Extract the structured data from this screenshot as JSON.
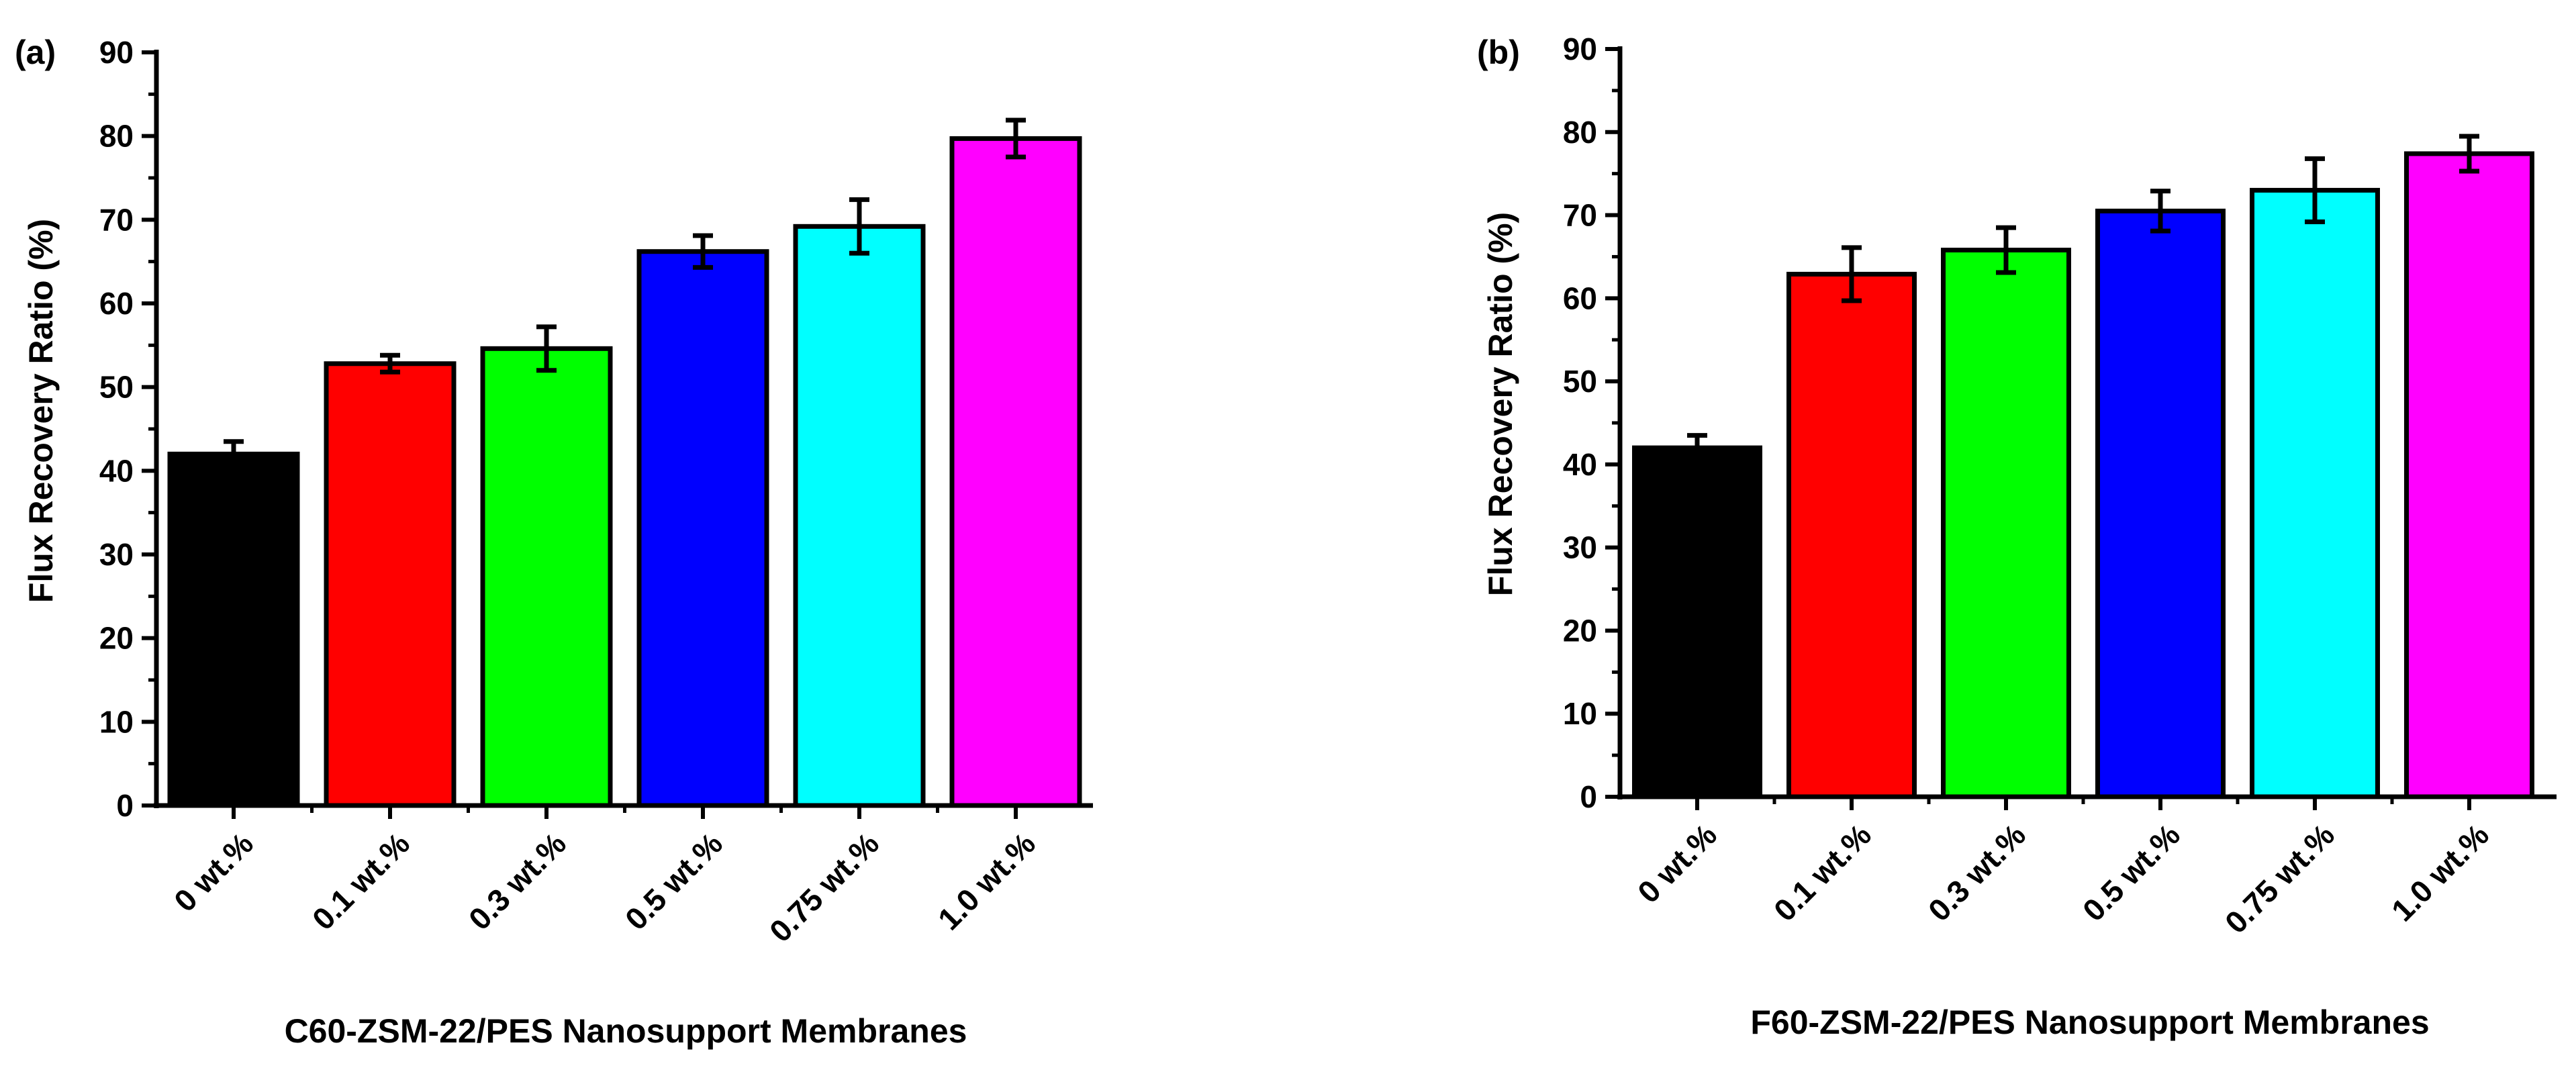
{
  "chart_data": [
    {
      "type": "bar",
      "panel_label": "(a)",
      "title": "",
      "xlabel": "C60-ZSM-22/PES Nanosupport Membranes",
      "ylabel": "Flux Recovery Ratio (%)",
      "ylim": [
        0,
        90
      ],
      "yticks": [
        "0",
        "10",
        "20",
        "30",
        "40",
        "50",
        "60",
        "70",
        "80",
        "90"
      ],
      "categories": [
        "0 wt.%",
        "0.1 wt.%",
        "0.3 wt.%",
        "0.5 wt.%",
        "0.75 wt.%",
        "1.0 wt.%"
      ],
      "values": [
        42.0,
        52.8,
        54.6,
        66.2,
        69.2,
        79.7
      ],
      "errors": [
        1.5,
        1.0,
        2.6,
        1.9,
        3.2,
        2.2
      ],
      "colors": [
        "#000000",
        "#ff0000",
        "#00ff00",
        "#0000ff",
        "#00ffff",
        "#ff00ff"
      ],
      "grid": false
    },
    {
      "type": "bar",
      "panel_label": "(b)",
      "title": "",
      "xlabel": "F60-ZSM-22/PES Nanosupport Membranes",
      "ylabel": "Flux Recovery Ratio (%)",
      "ylim": [
        0,
        90
      ],
      "yticks": [
        "0",
        "10",
        "20",
        "30",
        "40",
        "50",
        "60",
        "70",
        "80",
        "90"
      ],
      "categories": [
        "0 wt.%",
        "0.1 wt.%",
        "0.3 wt.%",
        "0.5 wt.%",
        "0.75 wt.%",
        "1.0 wt.%"
      ],
      "values": [
        42.0,
        62.9,
        65.8,
        70.5,
        73.0,
        77.4
      ],
      "errors": [
        1.5,
        3.2,
        2.7,
        2.4,
        3.8,
        2.1
      ],
      "colors": [
        "#000000",
        "#ff0000",
        "#00ff00",
        "#0000ff",
        "#00ffff",
        "#ff00ff"
      ],
      "grid": false
    }
  ]
}
